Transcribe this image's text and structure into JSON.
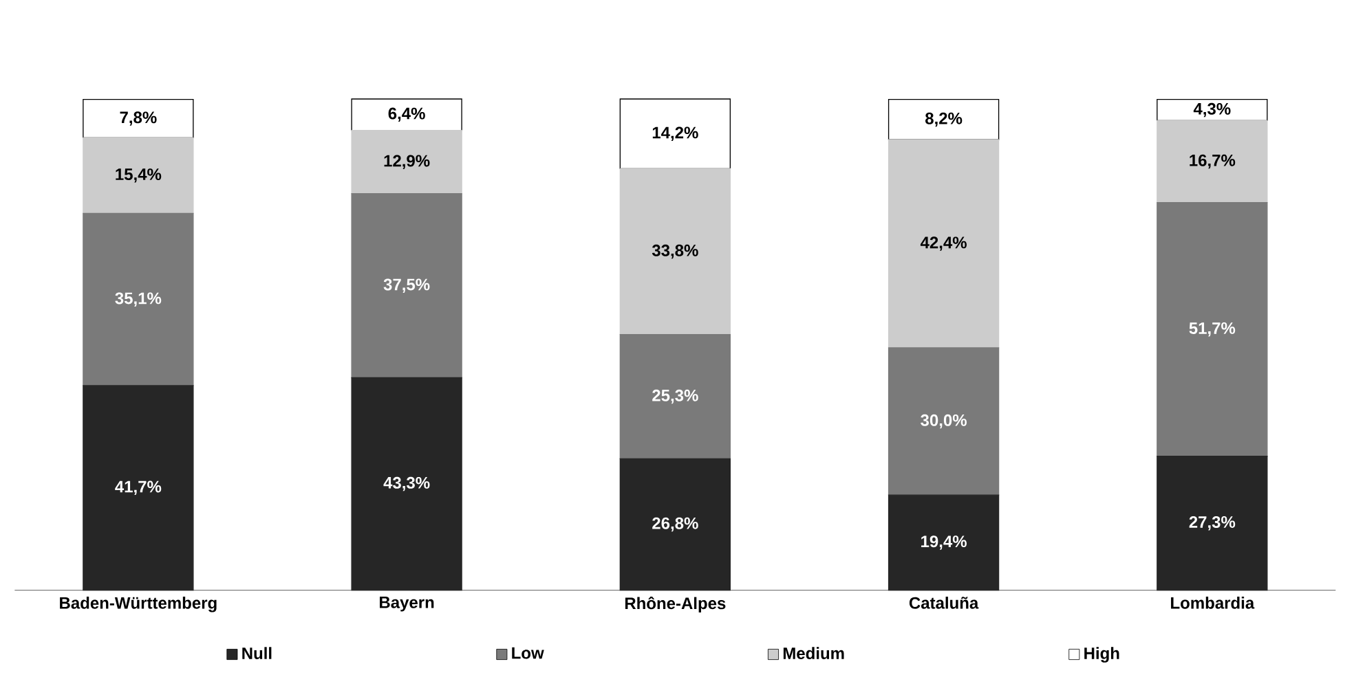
{
  "chart_data": {
    "type": "bar",
    "stacked": true,
    "legend": "bottom",
    "categories": [
      "Baden-Württemberg",
      "Bayern",
      "Rhône-Alpes",
      "Cataluña",
      "Lombardia"
    ],
    "series": [
      {
        "name": "Null",
        "color": "#262626",
        "values": [
          41.7,
          43.3,
          26.8,
          19.4,
          27.3
        ],
        "value_labels": [
          "41,7%",
          "43,3%",
          "26,8%",
          "19,4%",
          "27,3%"
        ]
      },
      {
        "name": "Low",
        "color": "#7a7a7a",
        "values": [
          35.1,
          37.5,
          25.3,
          30.0,
          51.7
        ],
        "value_labels": [
          "35,1%",
          "37,5%",
          "25,3%",
          "30,0%",
          "51,7%"
        ]
      },
      {
        "name": "Medium",
        "color": "#cccccc",
        "values": [
          15.4,
          12.9,
          33.8,
          42.4,
          16.7
        ],
        "value_labels": [
          "15,4%",
          "12,9%",
          "33,8%",
          "42,4%",
          "16,7%"
        ]
      },
      {
        "name": "High",
        "color": "#ffffff",
        "values": [
          7.8,
          6.4,
          14.2,
          8.2,
          4.3
        ],
        "value_labels": [
          "7,8%",
          "6,4%",
          "14,2%",
          "8,2%",
          "4,3%"
        ]
      }
    ]
  }
}
